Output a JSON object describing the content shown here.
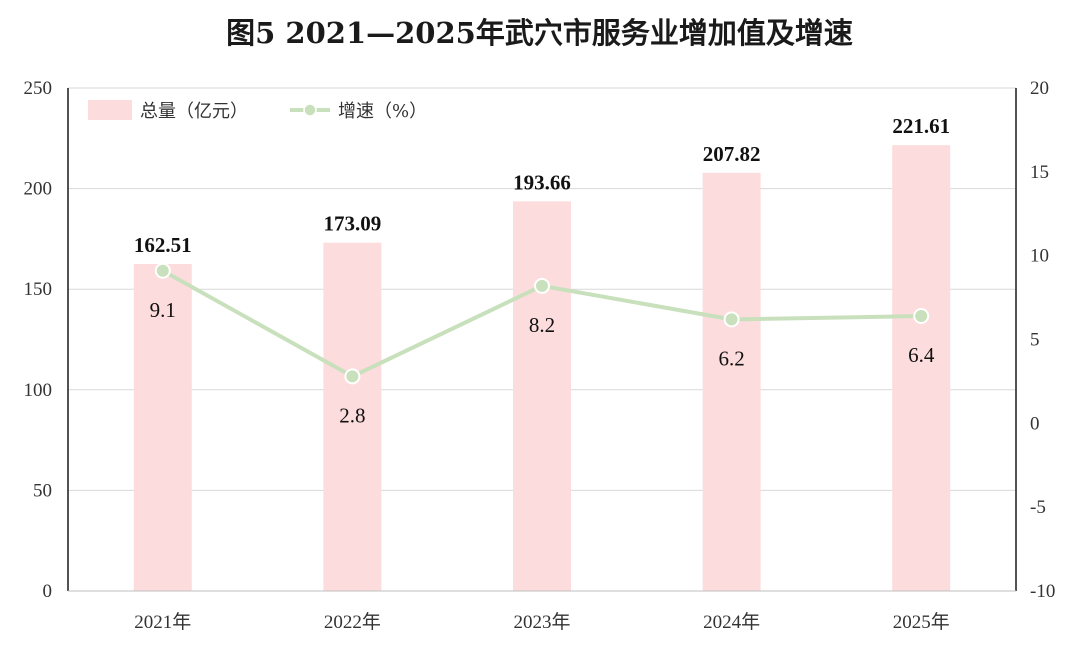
{
  "title": "图5  2021—2025年武穴市服务业增加值及增速",
  "chart_data": {
    "type": "bar",
    "title": "图5  2021—2025年武穴市服务业增加值及增速",
    "categories": [
      "2021年",
      "2022年",
      "2023年",
      "2024年",
      "2025年"
    ],
    "series": [
      {
        "name": "总量（亿元）",
        "type": "bar",
        "axis": "left",
        "values": [
          162.51,
          173.09,
          193.66,
          207.82,
          221.61
        ],
        "labels": [
          "162.51",
          "173.09",
          "193.66",
          "207.82",
          "221.61"
        ]
      },
      {
        "name": "增速（%）",
        "type": "line",
        "axis": "right",
        "values": [
          9.1,
          2.8,
          8.2,
          6.2,
          6.4
        ],
        "labels": [
          "9.1",
          "2.8",
          "8.2",
          "6.2",
          "6.4"
        ]
      }
    ],
    "left_axis": {
      "ylim": [
        0,
        250
      ],
      "ticks": [
        "0",
        "50",
        "100",
        "150",
        "200",
        "250"
      ]
    },
    "right_axis": {
      "ylim": [
        -10,
        20
      ],
      "ticks": [
        "-10",
        "-5",
        "0",
        "5",
        "10",
        "15",
        "20"
      ]
    },
    "grid": true,
    "legend_position": "top-left",
    "colors": {
      "bar": "#fddcdd",
      "line": "#c8e0bc",
      "marker_fill": "#c8e0bc",
      "marker_stroke": "#ffffff"
    }
  }
}
